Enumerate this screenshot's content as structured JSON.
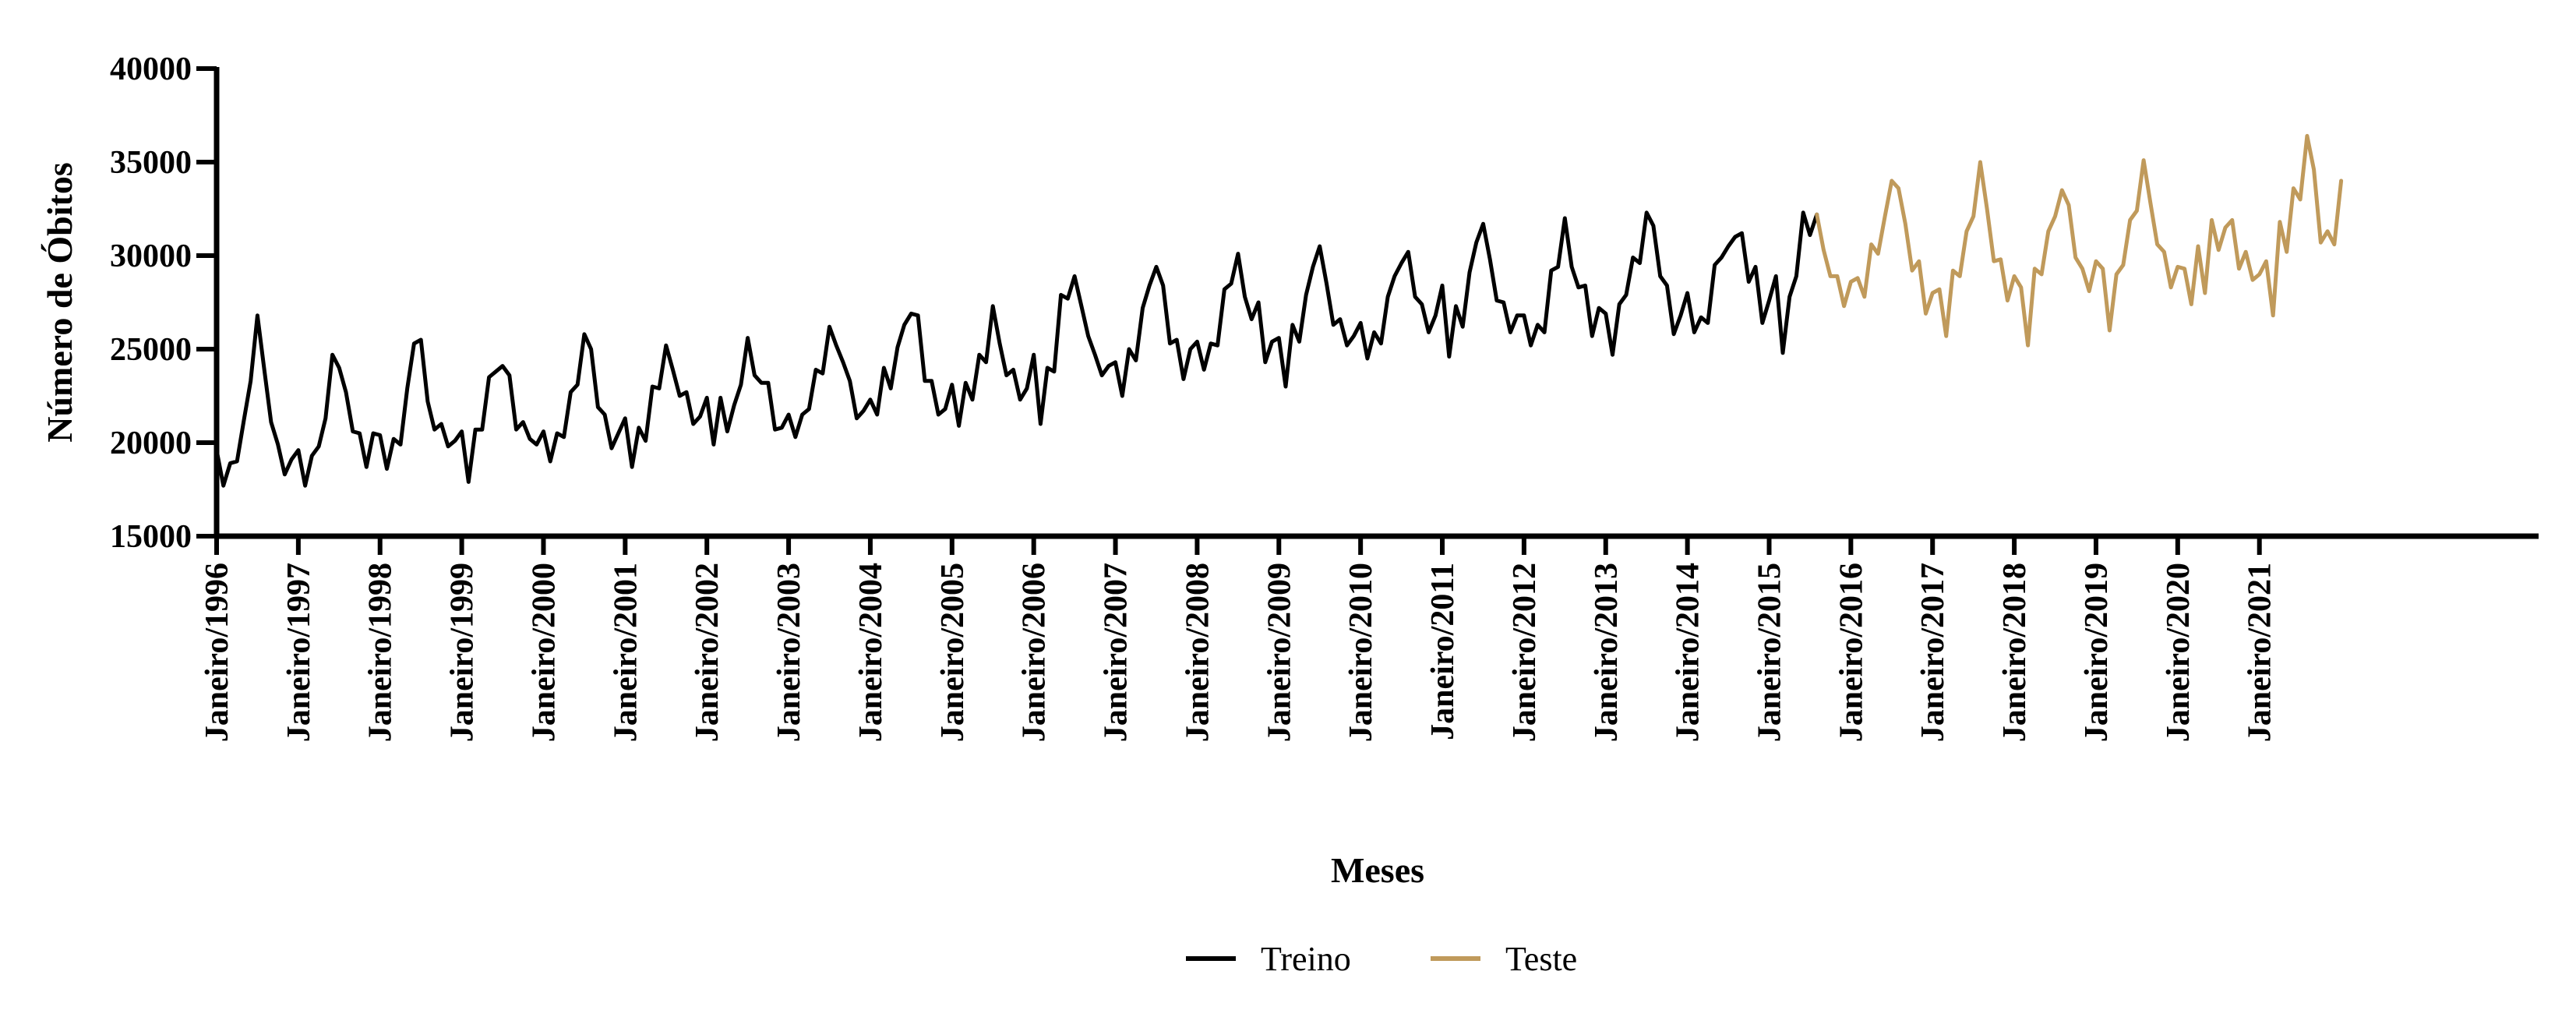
{
  "chart_data": {
    "type": "line",
    "xlabel": "Meses",
    "ylabel": "Número de Óbitos",
    "ylim": [
      15000,
      40000
    ],
    "yticks": [
      "15000",
      "20000",
      "25000",
      "30000",
      "35000",
      "40000"
    ],
    "xtick_labels": [
      "Janeiro/1996",
      "Janeiro/1997",
      "Janeiro/1998",
      "Janeiro/1999",
      "Janeiro/2000",
      "Janeiro/2001",
      "Janeiro/2002",
      "Janeiro/2003",
      "Janeiro/2004",
      "Janeiro/2005",
      "Janeiro/2006",
      "Janeiro/2007",
      "Janeiro/2008",
      "Janeiro/2009",
      "Janeiro/2010",
      "Janeiro/2011",
      "Janeiro/2012",
      "Janeiro/2013",
      "Janeiro/2014",
      "Janeiro/2015",
      "Janeiro/2016",
      "Janeiro/2017",
      "Janeiro/2018",
      "Janeiro/2019",
      "Janeiro/2020",
      "Janeiro/2021"
    ],
    "xlim": [
      "1996-01",
      "2024-06"
    ],
    "grid": false,
    "legend_position": "bottom-center",
    "series": [
      {
        "name": "Treino",
        "color": "#000000",
        "start": "1996-01",
        "values": [
          19600,
          17700,
          18900,
          19000,
          21200,
          23300,
          26800,
          23900,
          21100,
          19900,
          18300,
          19100,
          19600,
          17700,
          19300,
          19800,
          21300,
          24700,
          24000,
          22700,
          20600,
          20500,
          18700,
          20500,
          20400,
          18600,
          20200,
          19900,
          22900,
          25300,
          25500,
          22200,
          20700,
          21000,
          19800,
          20100,
          20600,
          17900,
          20700,
          20700,
          23500,
          23800,
          24100,
          23600,
          20700,
          21100,
          20200,
          19900,
          20600,
          19000,
          20500,
          20300,
          22700,
          23100,
          25800,
          25000,
          21900,
          21500,
          19700,
          20500,
          21300,
          18700,
          20800,
          20100,
          23000,
          22900,
          25200,
          23900,
          22500,
          22700,
          21000,
          21400,
          22400,
          19900,
          22400,
          20600,
          22000,
          23100,
          25600,
          23600,
          23200,
          23200,
          20700,
          20800,
          21500,
          20300,
          21500,
          21800,
          23900,
          23700,
          26200,
          25200,
          24300,
          23300,
          21300,
          21700,
          22300,
          21500,
          24000,
          22900,
          25100,
          26300,
          26900,
          26800,
          23300,
          23300,
          21500,
          21800,
          23100,
          20900,
          23200,
          22300,
          24700,
          24300,
          27300,
          25300,
          23600,
          23900,
          22300,
          22900,
          24700,
          21000,
          24000,
          23800,
          27900,
          27700,
          28900,
          27300,
          25700,
          24700,
          23600,
          24100,
          24300,
          22500,
          25000,
          24400,
          27200,
          28400,
          29400,
          28400,
          25300,
          25500,
          23400,
          25000,
          25400,
          23900,
          25300,
          25200,
          28200,
          28500,
          30100,
          27800,
          26600,
          27500,
          24300,
          25400,
          25600,
          23000,
          26300,
          25400,
          27900,
          29400,
          30500,
          28500,
          26300,
          26600,
          25200,
          25700,
          26400,
          24500,
          25900,
          25300,
          27800,
          28900,
          29600,
          30200,
          27800,
          27400,
          25900,
          26800,
          28400,
          24600,
          27300,
          26200,
          29100,
          30700,
          31700,
          29800,
          27600,
          27500,
          25900,
          26800,
          26800,
          25200,
          26300,
          25900,
          29200,
          29400,
          32000,
          29400,
          28300,
          28400,
          25700,
          27200,
          26900,
          24700,
          27400,
          27900,
          29900,
          29600,
          32300,
          31600,
          28900,
          28400,
          25800,
          26800,
          28000,
          25900,
          26700,
          26400,
          29500,
          29900,
          30500,
          31000,
          31200,
          28600,
          29400,
          26400,
          27600,
          28900,
          24800,
          27800,
          28900,
          32300,
          31100,
          32200
        ]
      },
      {
        "name": "Teste",
        "color": "#c09a5b",
        "start": "2015-08",
        "values": [
          32200,
          30300,
          28900,
          28900,
          27300,
          28600,
          28800,
          27800,
          30600,
          30100,
          32100,
          34000,
          33600,
          31700,
          29200,
          29700,
          26900,
          28000,
          28200,
          25700,
          29200,
          28900,
          31300,
          32100,
          35000,
          32500,
          29700,
          29800,
          27600,
          28900,
          28300,
          25200,
          29300,
          29000,
          31300,
          32100,
          33500,
          32700,
          29900,
          29300,
          28100,
          29700,
          29300,
          26000,
          29000,
          29500,
          31900,
          32400,
          35100,
          32800,
          30600,
          30200,
          28300,
          29400,
          29300,
          27400,
          30500,
          28000,
          31900,
          30300,
          31500,
          31900,
          29300,
          30200,
          28700,
          29000,
          29700,
          26800,
          31800,
          30200,
          33600,
          33000,
          36400,
          34600,
          30700,
          31300,
          30600,
          34000
        ]
      }
    ]
  }
}
